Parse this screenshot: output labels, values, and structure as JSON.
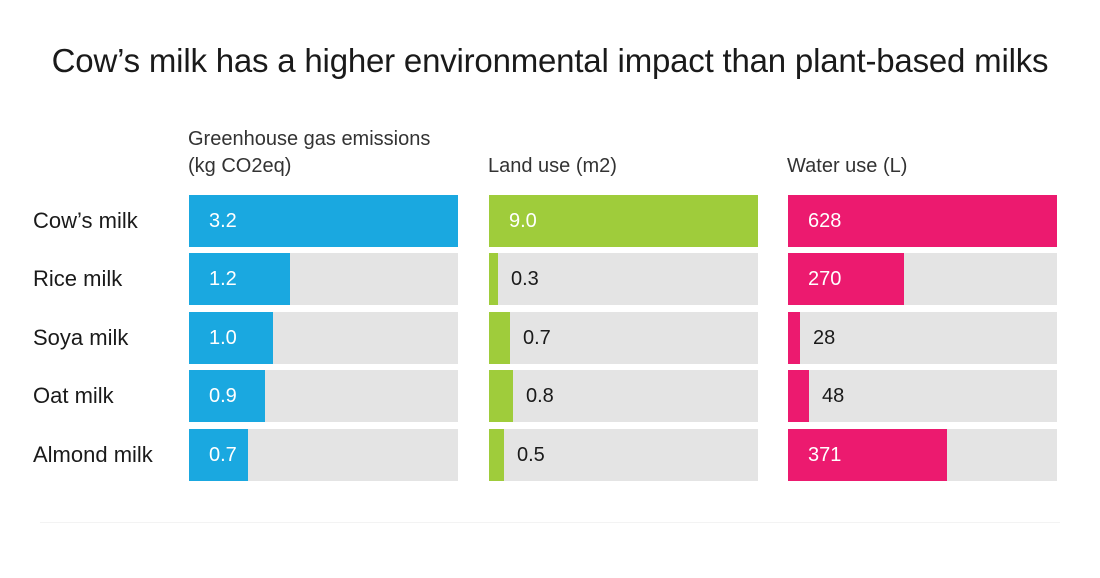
{
  "chart_data": {
    "type": "bar",
    "title": "Cow’s milk has a higher environmental impact than plant-based milks",
    "categories": [
      "Cow’s milk",
      "Rice milk",
      "Soya milk",
      "Oat milk",
      "Almond milk"
    ],
    "series": [
      {
        "name_lines": [
          "Greenhouse gas emissions",
          "(kg CO2eq)"
        ],
        "values": [
          3.2,
          1.2,
          1.0,
          0.9,
          0.7
        ],
        "labels": [
          "3.2",
          "1.2",
          "1.0",
          "0.9",
          "0.7"
        ],
        "max": 3.2,
        "color": "#1aa8e0"
      },
      {
        "name_lines": [
          "Land use (m2)"
        ],
        "values": [
          9.0,
          0.3,
          0.7,
          0.8,
          0.5
        ],
        "labels": [
          "9.0",
          "0.3",
          "0.7",
          "0.8",
          "0.5"
        ],
        "max": 9.0,
        "color": "#9fcc3b"
      },
      {
        "name_lines": [
          "Water use (L)"
        ],
        "values": [
          628,
          270,
          28,
          48,
          371
        ],
        "labels": [
          "628",
          "270",
          "28",
          "48",
          "371"
        ],
        "max": 628,
        "color": "#ec1a6f"
      }
    ],
    "track_color": "#e4e4e4",
    "orientation": "horizontal",
    "grid": false
  }
}
